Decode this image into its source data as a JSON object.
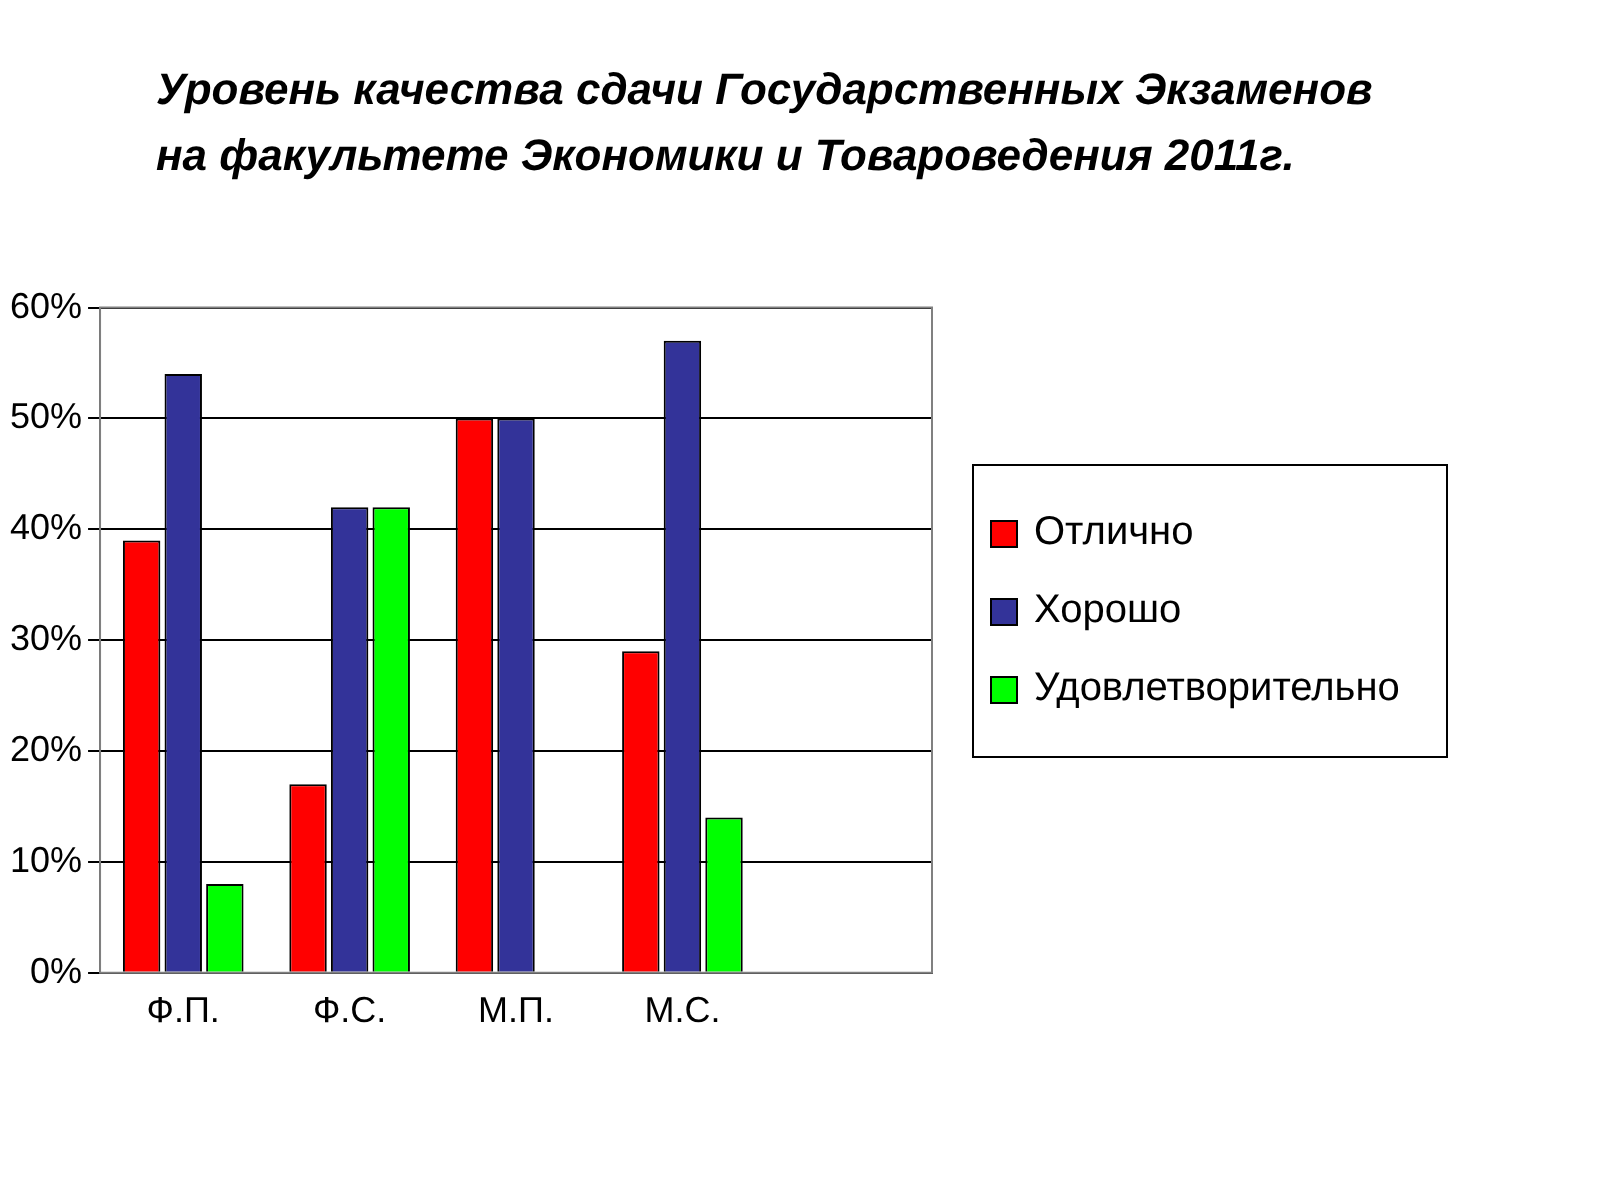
{
  "chart_data": {
    "type": "bar",
    "title": "Уровень качества сдачи Государственных Экзаменов на факультете Экономики и Товароведения 2011г.",
    "categories": [
      "Ф.П.",
      "Ф.С.",
      "М.П.",
      "М.С.",
      null
    ],
    "series": [
      {
        "name": "Отлично",
        "color": "#ff0000",
        "values": [
          39,
          17,
          50,
          29,
          null
        ]
      },
      {
        "name": "Хорошо",
        "color": "#333399",
        "values": [
          54,
          42,
          50,
          57,
          null
        ]
      },
      {
        "name": "Удовлетворительно",
        "color": "#00ff00",
        "values": [
          8,
          42,
          0,
          14,
          null
        ]
      }
    ],
    "ylim": [
      0,
      60
    ],
    "yticks": [
      {
        "value": 0,
        "label": "0%"
      },
      {
        "value": 10,
        "label": "10%"
      },
      {
        "value": 20,
        "label": "20%"
      },
      {
        "value": 30,
        "label": "30%"
      },
      {
        "value": 40,
        "label": "40%"
      },
      {
        "value": 50,
        "label": "50%"
      },
      {
        "value": 60,
        "label": "60%"
      }
    ],
    "grid": "y",
    "legend": "right"
  }
}
